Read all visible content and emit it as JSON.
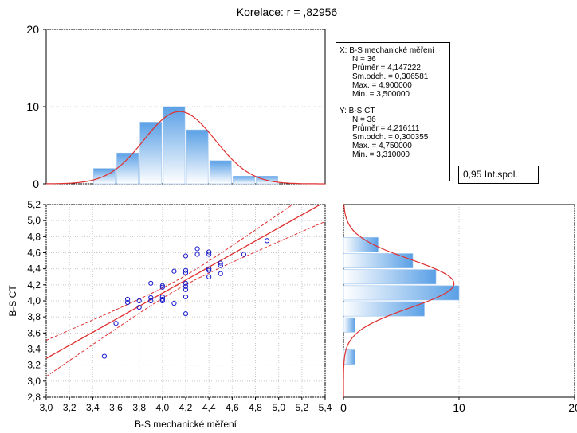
{
  "chart_data": {
    "type": "scatter",
    "title": "Korelace: r =    ,82956",
    "xlabel": "B-S mechanické měření",
    "ylabel": "B-S CT",
    "xlim": [
      3.0,
      5.4
    ],
    "ylim": [
      2.8,
      5.2
    ],
    "x_ticks": [
      "3,0",
      "3,2",
      "3,4",
      "3,6",
      "3,8",
      "4,0",
      "4,2",
      "4,4",
      "4,6",
      "4,8",
      "5,0",
      "5,2",
      "5,4"
    ],
    "y_ticks": [
      "2,8",
      "3,0",
      "3,2",
      "3,4",
      "3,6",
      "3,8",
      "4,0",
      "4,2",
      "4,4",
      "4,6",
      "4,8",
      "5,0",
      "5,2"
    ],
    "grid": true,
    "points": [
      [
        3.5,
        3.31
      ],
      [
        3.6,
        3.72
      ],
      [
        3.7,
        3.98
      ],
      [
        3.7,
        4.02
      ],
      [
        3.8,
        3.92
      ],
      [
        3.8,
        4.0
      ],
      [
        3.9,
        4.0
      ],
      [
        3.9,
        4.04
      ],
      [
        3.9,
        4.22
      ],
      [
        4.0,
        4.0
      ],
      [
        4.0,
        4.02
      ],
      [
        4.0,
        4.05
      ],
      [
        4.0,
        4.17
      ],
      [
        4.0,
        4.19
      ],
      [
        4.1,
        3.97
      ],
      [
        4.1,
        4.37
      ],
      [
        4.2,
        3.84
      ],
      [
        4.2,
        4.05
      ],
      [
        4.2,
        4.14
      ],
      [
        4.2,
        4.18
      ],
      [
        4.2,
        4.22
      ],
      [
        4.2,
        4.35
      ],
      [
        4.2,
        4.38
      ],
      [
        4.2,
        4.56
      ],
      [
        4.3,
        4.58
      ],
      [
        4.3,
        4.65
      ],
      [
        4.4,
        4.3
      ],
      [
        4.4,
        4.38
      ],
      [
        4.4,
        4.4
      ],
      [
        4.4,
        4.58
      ],
      [
        4.4,
        4.61
      ],
      [
        4.5,
        4.34
      ],
      [
        4.5,
        4.44
      ],
      [
        4.5,
        4.47
      ],
      [
        4.7,
        4.58
      ],
      [
        4.9,
        4.75
      ]
    ],
    "regression": {
      "slope": 0.8129,
      "intercept": 0.8447
    },
    "confidence_band_label": "0,95 Int.spol.",
    "hist_x": {
      "ylim": [
        0,
        20
      ],
      "y_ticks": [
        "0",
        "10",
        "20"
      ],
      "bins": [
        {
          "from": 3.4,
          "to": 3.6,
          "count": 2
        },
        {
          "from": 3.6,
          "to": 3.8,
          "count": 4
        },
        {
          "from": 3.8,
          "to": 4.0,
          "count": 8
        },
        {
          "from": 4.0,
          "to": 4.2,
          "count": 10
        },
        {
          "from": 4.2,
          "to": 4.4,
          "count": 7
        },
        {
          "from": 4.4,
          "to": 4.6,
          "count": 3
        },
        {
          "from": 4.6,
          "to": 4.8,
          "count": 1
        },
        {
          "from": 4.8,
          "to": 5.0,
          "count": 1
        }
      ]
    },
    "hist_y": {
      "xlim": [
        0,
        20
      ],
      "x_ticks": [
        "0",
        "10",
        "20"
      ],
      "bins": [
        {
          "from": 3.2,
          "to": 3.4,
          "count": 1
        },
        {
          "from": 3.6,
          "to": 3.8,
          "count": 1
        },
        {
          "from": 3.8,
          "to": 4.0,
          "count": 7
        },
        {
          "from": 4.0,
          "to": 4.2,
          "count": 10
        },
        {
          "from": 4.2,
          "to": 4.4,
          "count": 8
        },
        {
          "from": 4.4,
          "to": 4.6,
          "count": 6
        },
        {
          "from": 4.6,
          "to": 4.8,
          "count": 3
        }
      ]
    },
    "stats": {
      "x": {
        "label": "X:  B-S mechanické měření",
        "lines": [
          "N = 36",
          "Průměr = 4,147222",
          "Sm.odch. = 0,306581",
          "Max. = 4,900000",
          "Min. = 3,500000"
        ],
        "mean": 4.147222,
        "sd": 0.306581,
        "n": 36
      },
      "y": {
        "label": "Y:  B-S CT",
        "lines": [
          "N = 36",
          "Průměr = 4,216111",
          "Sm.odch. = 0,300355",
          "Max. = 4,750000",
          "Min. = 3,310000"
        ],
        "mean": 4.216111,
        "sd": 0.300355,
        "n": 36
      }
    },
    "colors": {
      "points": "#1a1acc",
      "fit_line": "#e03030",
      "bar_dark": "#5aa0e6",
      "bar_light": "#ffffff",
      "bar_border": "#9cc4ee",
      "grid": "#c8c8c8"
    }
  }
}
